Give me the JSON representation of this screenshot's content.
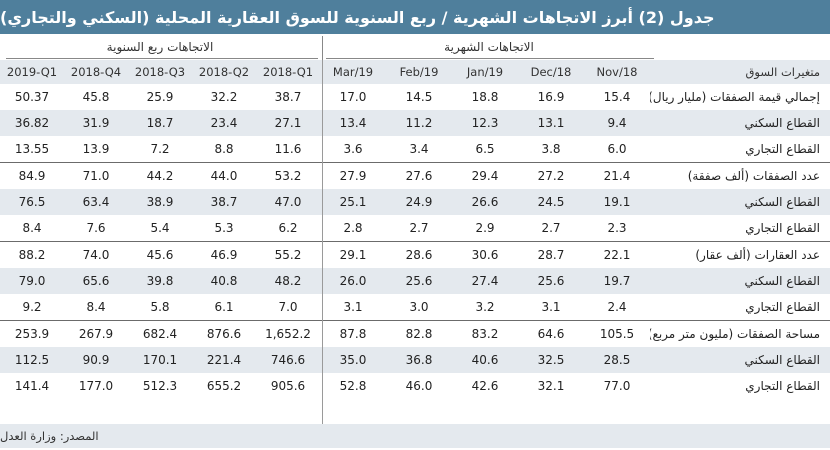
{
  "title": "جدول (2) أبرز الاتجاهات الشهرية / ربع السنوية للسوق العقارية المحلية (السكني والتجاري)",
  "group_headers": {
    "quarterly": "الاتجاهات ربع السنوية",
    "monthly": "الاتجاهات الشهرية"
  },
  "columns": [
    "2019-Q1",
    "2018-Q4",
    "2018-Q3",
    "2018-Q2",
    "2018-Q1",
    "Mar/19",
    "Feb/19",
    "Jan/19",
    "Dec/18",
    "Nov/18"
  ],
  "label_header": "متغيرات السوق",
  "rows": [
    {
      "label": "إجمالي قيمة الصفقات (مليار ريال)",
      "values": [
        "50.37",
        "45.8",
        "25.9",
        "32.2",
        "38.7",
        "17.0",
        "14.5",
        "18.8",
        "16.9",
        "15.4"
      ]
    },
    {
      "label": "القطاع السكني",
      "values": [
        "36.82",
        "31.9",
        "18.7",
        "23.4",
        "27.1",
        "13.4",
        "11.2",
        "12.3",
        "13.1",
        "9.4"
      ]
    },
    {
      "label": "القطاع التجاري",
      "values": [
        "13.55",
        "13.9",
        "7.2",
        "8.8",
        "11.6",
        "3.6",
        "3.4",
        "6.5",
        "3.8",
        "6.0"
      ]
    },
    {
      "label": "عدد الصفقات (ألف صفقة)",
      "values": [
        "84.9",
        "71.0",
        "44.2",
        "44.0",
        "53.2",
        "27.9",
        "27.6",
        "29.4",
        "27.2",
        "21.4"
      ]
    },
    {
      "label": "القطاع السكني",
      "values": [
        "76.5",
        "63.4",
        "38.9",
        "38.7",
        "47.0",
        "25.1",
        "24.9",
        "26.6",
        "24.5",
        "19.1"
      ]
    },
    {
      "label": "القطاع التجاري",
      "values": [
        "8.4",
        "7.6",
        "5.4",
        "5.3",
        "6.2",
        "2.8",
        "2.7",
        "2.9",
        "2.7",
        "2.3"
      ]
    },
    {
      "label": "عدد العقارات (ألف عقار)",
      "values": [
        "88.2",
        "74.0",
        "45.6",
        "46.9",
        "55.2",
        "29.1",
        "28.6",
        "30.6",
        "28.7",
        "22.1"
      ]
    },
    {
      "label": "القطاع السكني",
      "values": [
        "79.0",
        "65.6",
        "39.8",
        "40.8",
        "48.2",
        "26.0",
        "25.6",
        "27.4",
        "25.6",
        "19.7"
      ]
    },
    {
      "label": "القطاع التجاري",
      "values": [
        "9.2",
        "8.4",
        "5.8",
        "6.1",
        "7.0",
        "3.1",
        "3.0",
        "3.2",
        "3.1",
        "2.4"
      ]
    },
    {
      "label": "مساحة الصفقات (مليون متر مربع)",
      "values": [
        "253.9",
        "267.9",
        "682.4",
        "876.6",
        "1,652.2",
        "87.8",
        "82.8",
        "83.2",
        "64.6",
        "105.5"
      ]
    },
    {
      "label": "القطاع السكني",
      "values": [
        "112.5",
        "90.9",
        "170.1",
        "221.4",
        "746.6",
        "35.0",
        "36.8",
        "40.6",
        "32.5",
        "28.5"
      ]
    },
    {
      "label": "القطاع التجاري",
      "values": [
        "141.4",
        "177.0",
        "512.3",
        "655.2",
        "905.6",
        "52.8",
        "46.0",
        "42.6",
        "32.1",
        "77.0"
      ]
    }
  ],
  "source": "المصدر: وزارة العدل"
}
